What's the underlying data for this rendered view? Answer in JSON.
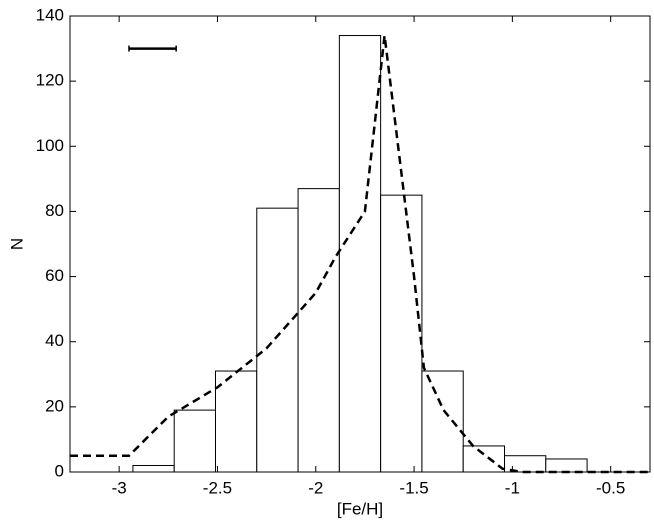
{
  "chart_data": {
    "type": "histogram",
    "xlabel": "[Fe/H]",
    "ylabel": "N",
    "bins": [
      -2.93,
      -2.72,
      -2.51,
      -2.3,
      -2.09,
      -1.88,
      -1.67,
      -1.46,
      -1.25,
      -1.04,
      -0.83,
      -0.62
    ],
    "values": [
      2,
      19,
      31,
      81,
      87,
      134,
      85,
      31,
      8,
      5,
      4
    ],
    "color": "#ffffff",
    "edgecolor": "#000000",
    "line": {
      "x": [
        -3.25,
        -2.95,
        -2.75,
        -2.5,
        -2.25,
        -2.0,
        -1.9,
        -1.75,
        -1.65,
        -1.5,
        -1.45,
        -1.35,
        -1.2,
        -1.05,
        -0.95,
        -0.3
      ],
      "values": [
        5,
        5,
        17,
        26,
        38,
        55,
        66,
        80,
        134,
        60,
        32,
        19,
        8,
        1,
        0,
        0
      ],
      "color": "#000000",
      "dashed": true
    },
    "error_bar": {
      "x": [
        -2.95,
        -2.71
      ],
      "y": 130
    },
    "xlim": [
      -3.25,
      -0.3
    ],
    "ylim": [
      0,
      140
    ],
    "xticks": [
      -3,
      -2.5,
      -2,
      -1.5,
      -1,
      -0.5
    ],
    "yticks": [
      0,
      20,
      40,
      60,
      80,
      100,
      120,
      140
    ]
  }
}
